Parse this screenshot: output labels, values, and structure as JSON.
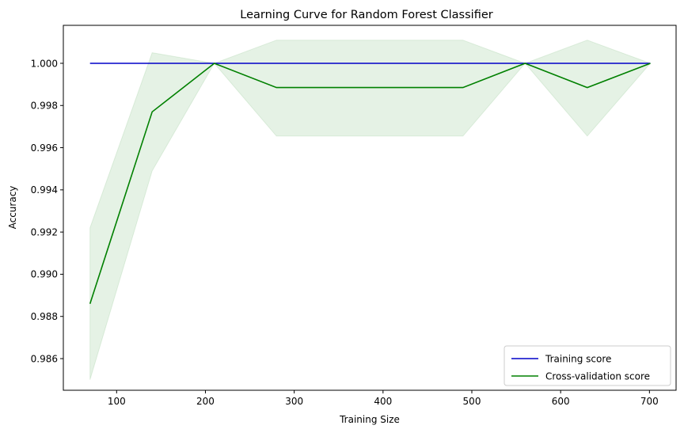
{
  "chart_data": {
    "type": "line",
    "title": "Learning Curve for Random Forest Classifier",
    "xlabel": "Training Size",
    "ylabel": "Accuracy",
    "xlim": [
      40,
      730
    ],
    "ylim": [
      0.9845,
      1.0018
    ],
    "xticks": [
      100,
      200,
      300,
      400,
      500,
      600,
      700
    ],
    "yticks": [
      0.986,
      0.988,
      0.99,
      0.992,
      0.994,
      0.996,
      0.998,
      1.0
    ],
    "ytick_labels": [
      "0.986",
      "0.988",
      "0.990",
      "0.992",
      "0.994",
      "0.996",
      "0.998",
      "1.000"
    ],
    "x": [
      70,
      140,
      210,
      280,
      350,
      420,
      490,
      560,
      630,
      701
    ],
    "series": [
      {
        "name": "Training score",
        "color": "#0000c8",
        "values": [
          1.0,
          1.0,
          1.0,
          1.0,
          1.0,
          1.0,
          1.0,
          1.0,
          1.0,
          1.0
        ],
        "band_upper": [
          1.0,
          1.0,
          1.0,
          1.0,
          1.0,
          1.0,
          1.0,
          1.0,
          1.0,
          1.0
        ],
        "band_lower": [
          1.0,
          1.0,
          1.0,
          1.0,
          1.0,
          1.0,
          1.0,
          1.0,
          1.0,
          1.0
        ]
      },
      {
        "name": "Cross-validation score",
        "color": "#008000",
        "values": [
          0.9886,
          0.9977,
          1.0,
          0.99885,
          0.99885,
          0.99885,
          0.99885,
          1.0,
          0.99885,
          1.0
        ],
        "band_upper": [
          0.9922,
          1.0005,
          1.0,
          1.0011,
          1.0011,
          1.0011,
          1.0011,
          1.0,
          1.0011,
          1.0
        ],
        "band_lower": [
          0.985,
          0.9949,
          1.0,
          0.99655,
          0.99655,
          0.99655,
          0.99655,
          1.0,
          0.99655,
          1.0
        ],
        "band_color": "#008000"
      }
    ],
    "grid": false,
    "legend_position": "lower-right"
  }
}
